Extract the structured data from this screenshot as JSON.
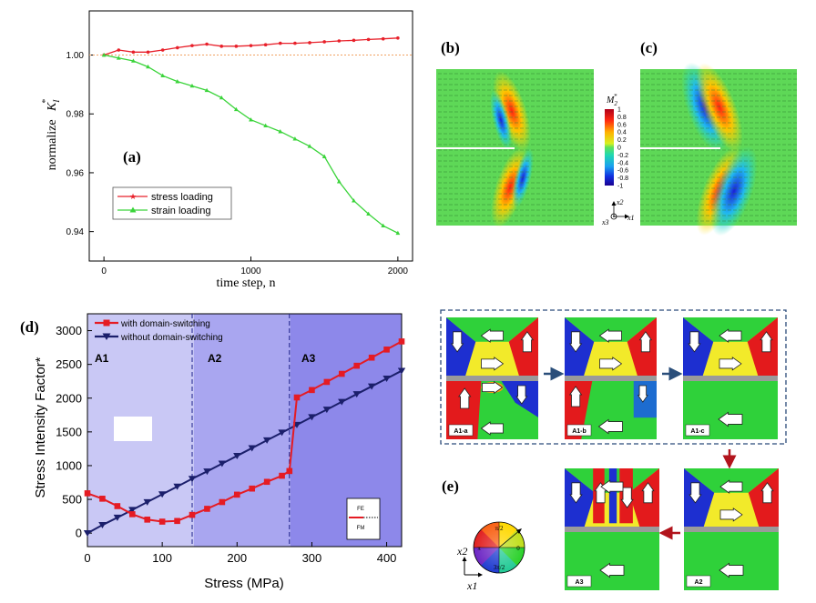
{
  "panel_a": {
    "label": "(a)",
    "xlabel": "time step, n",
    "ylabel_prefix": "normalize",
    "ylabel_symbol": "K",
    "ylabel_sub": "I",
    "ylabel_sup": "*",
    "legend": [
      "stress loading",
      "strain loading"
    ],
    "colors": {
      "stress": "#e8202a",
      "strain": "#3ad43a",
      "ref": "#f0a060"
    }
  },
  "panel_b": {
    "label": "(b)"
  },
  "panel_c": {
    "label": "(c)"
  },
  "colorbar": {
    "title_symbol": "M",
    "title_sub": "2",
    "title_sup": "*",
    "ticks": [
      "1",
      "0.8",
      "0.6",
      "0.4",
      "0.2",
      "0",
      "-0.2",
      "-0.4",
      "-0.6",
      "-0.8",
      "-1"
    ]
  },
  "axes_icon": {
    "x2": "x2",
    "x1": "x1",
    "x3": "x3"
  },
  "panel_d": {
    "label": "(d)",
    "regions": [
      "A1",
      "A2",
      "A3"
    ],
    "legend": [
      "with domain-switching",
      "without domain-switching"
    ],
    "inset_labels": [
      "FE",
      "FM"
    ],
    "colors": {
      "with": "#e51b23",
      "without": "#1b1f6b",
      "a1": "#c9c8f5",
      "a2": "#a9a6f0",
      "a3": "#8d88ea"
    }
  },
  "panel_e": {
    "label": "(e)",
    "tiles": [
      "A1-a",
      "A1-b",
      "A1-c",
      "A2",
      "A3"
    ],
    "wheel": {
      "top": "π/2",
      "left": "π",
      "right": "0",
      "bottom": "3π/2"
    },
    "axis_labels": {
      "y": "x2",
      "x": "x1"
    }
  },
  "chart_data": [
    {
      "type": "line",
      "title": "",
      "xlabel": "time step, n",
      "ylabel": "normalize K_I*",
      "xlim": [
        -100,
        2100
      ],
      "ylim": [
        0.93,
        1.015
      ],
      "xticks": [
        0,
        1000,
        2000
      ],
      "yticks": [
        0.94,
        0.96,
        0.98,
        1.0
      ],
      "reference_line": 1.0,
      "legend_position": "lower-left",
      "series": [
        {
          "name": "stress loading",
          "x": [
            0,
            100,
            200,
            300,
            400,
            500,
            600,
            700,
            800,
            900,
            1000,
            1100,
            1200,
            1300,
            1400,
            1500,
            1600,
            1700,
            1800,
            1900,
            2000
          ],
          "y": [
            1.0,
            1.0017,
            1.001,
            1.001,
            1.0017,
            1.0025,
            1.0032,
            1.0037,
            1.003,
            1.003,
            1.0032,
            1.0035,
            1.004,
            1.004,
            1.0042,
            1.0045,
            1.0048,
            1.005,
            1.0053,
            1.0055,
            1.0058
          ]
        },
        {
          "name": "strain loading",
          "x": [
            0,
            100,
            200,
            300,
            400,
            500,
            600,
            700,
            800,
            900,
            1000,
            1100,
            1200,
            1300,
            1400,
            1500,
            1600,
            1700,
            1800,
            1900,
            2000
          ],
          "y": [
            1.0,
            0.999,
            0.998,
            0.996,
            0.993,
            0.991,
            0.9895,
            0.988,
            0.9855,
            0.9815,
            0.978,
            0.976,
            0.974,
            0.9715,
            0.969,
            0.9655,
            0.957,
            0.9505,
            0.946,
            0.942,
            0.9395
          ]
        }
      ]
    },
    {
      "type": "line",
      "title": "",
      "xlabel": "Stress (MPa)",
      "ylabel": "Stress Intensity Factor*",
      "xlim": [
        0,
        420
      ],
      "ylim": [
        -200,
        3250
      ],
      "xticks": [
        0,
        100,
        200,
        300,
        400
      ],
      "yticks": [
        0,
        500,
        1000,
        1500,
        2000,
        2500,
        3000
      ],
      "region_boundaries": [
        140,
        270
      ],
      "legend_position": "top-left",
      "series": [
        {
          "name": "with domain-switching",
          "x": [
            0,
            20,
            40,
            60,
            80,
            100,
            120,
            140,
            160,
            180,
            200,
            220,
            240,
            260,
            270,
            280,
            300,
            320,
            340,
            360,
            380,
            400,
            420
          ],
          "y": [
            590,
            510,
            400,
            280,
            200,
            170,
            180,
            270,
            360,
            460,
            570,
            660,
            760,
            850,
            920,
            2010,
            2120,
            2240,
            2360,
            2480,
            2600,
            2720,
            2840
          ]
        },
        {
          "name": "without domain-switching",
          "x": [
            0,
            20,
            40,
            60,
            80,
            100,
            120,
            140,
            160,
            180,
            200,
            220,
            240,
            260,
            280,
            300,
            320,
            340,
            360,
            380,
            400,
            420
          ],
          "y": [
            0,
            120,
            230,
            345,
            460,
            575,
            690,
            805,
            915,
            1030,
            1145,
            1260,
            1375,
            1490,
            1605,
            1720,
            1830,
            1945,
            2060,
            2175,
            2290,
            2405
          ]
        }
      ]
    }
  ]
}
